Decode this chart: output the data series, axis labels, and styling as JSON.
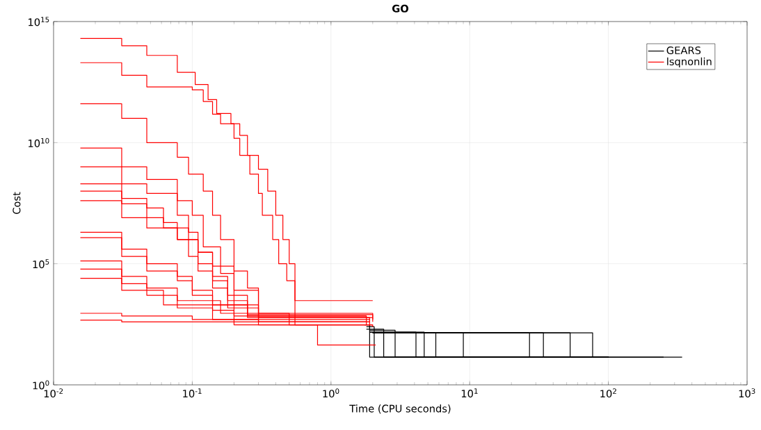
{
  "chart_data": {
    "type": "step",
    "title": "GO",
    "xlabel": "Time (CPU seconds)",
    "ylabel": "Cost",
    "log": "xy",
    "grid": true,
    "legend": "top right",
    "xlim": [
      0.01,
      1000
    ],
    "ylim": [
      1,
      1000000000000000.0
    ],
    "xticks": [
      {
        "value": 0.01,
        "label": "10$^{-2}$"
      },
      {
        "value": 0.1,
        "label": "10$^{-1}$"
      },
      {
        "value": 1,
        "label": "10$^{0}$"
      },
      {
        "value": 10,
        "label": "10$^{1}$"
      },
      {
        "value": 100,
        "label": "10$^{2}$"
      },
      {
        "value": 1000,
        "label": "10$^{3}$"
      }
    ],
    "yticks": [
      {
        "value": 1,
        "label": "10$^{0}$"
      },
      {
        "value": 100000,
        "label": "10$^{5}$"
      },
      {
        "value": 10000000000,
        "label": "10$^{10}$"
      },
      {
        "value": 1000000000000000,
        "label": "10$^{15}$"
      }
    ],
    "series": [
      {
        "name": "GEARS",
        "color": "#000000",
        "x": [
          1.75,
          1.9,
          340
        ],
        "values": [
          300,
          14,
          14
        ]
      },
      {
        "color": "#000000",
        "x": [
          1.8,
          2.05,
          250
        ],
        "values": [
          250,
          14,
          14
        ]
      },
      {
        "color": "#000000",
        "x": [
          1.8,
          2.4,
          100
        ],
        "values": [
          200,
          14,
          14
        ]
      },
      {
        "color": "#000000",
        "x": [
          1.9,
          2.9,
          100
        ],
        "values": [
          180,
          14,
          14
        ]
      },
      {
        "color": "#000000",
        "x": [
          1.9,
          4.1,
          100
        ],
        "values": [
          150,
          14,
          14
        ]
      },
      {
        "color": "#000000",
        "x": [
          1.9,
          4.7,
          100
        ],
        "values": [
          150,
          14,
          14
        ]
      },
      {
        "color": "#000000",
        "x": [
          2.0,
          5.7,
          100
        ],
        "values": [
          140,
          14,
          14
        ]
      },
      {
        "color": "#000000",
        "x": [
          2.0,
          9.0,
          100
        ],
        "values": [
          140,
          14,
          14
        ]
      },
      {
        "color": "#000000",
        "x": [
          2.0,
          27,
          100
        ],
        "values": [
          140,
          14,
          14
        ]
      },
      {
        "color": "#000000",
        "x": [
          2.0,
          34,
          100
        ],
        "values": [
          140,
          14,
          14
        ]
      },
      {
        "color": "#000000",
        "x": [
          2.0,
          53,
          100
        ],
        "values": [
          140,
          14,
          14
        ]
      },
      {
        "color": "#000000",
        "x": [
          2.0,
          77,
          100
        ],
        "values": [
          140,
          14,
          14
        ]
      },
      {
        "name": "lsqnonlin",
        "color": "#ff0000",
        "x": [
          0.0156,
          0.031,
          0.047,
          0.078,
          0.105,
          0.13,
          0.15,
          0.19,
          0.22,
          0.25,
          0.3,
          0.35,
          0.4,
          0.45,
          0.5,
          0.55,
          2.0
        ],
        "values": [
          200000000000000.0,
          100000000000000.0,
          40000000000000.0,
          8000000000000.0,
          2500000000000.0,
          600000000000.0,
          160000000000.0,
          60000000000.0,
          20000000000.0,
          3000000000.0,
          800000000.0,
          100000000.0,
          10000000.0,
          1000000.0,
          100000.0,
          3000,
          3000
        ]
      },
      {
        "color": "#ff0000",
        "x": [
          0.0156,
          0.031,
          0.047,
          0.1,
          0.12,
          0.14,
          0.16,
          0.2,
          0.22,
          0.26,
          0.3,
          0.32,
          0.38,
          0.42,
          0.48,
          0.55,
          2.0
        ],
        "values": [
          20000000000000.0,
          6000000000000.0,
          2000000000000.0,
          1500000000000.0,
          500000000000.0,
          150000000000.0,
          60000000000.0,
          15000000000.0,
          3000000000.0,
          500000000.0,
          80000000.0,
          10000000.0,
          1000000.0,
          100000.0,
          20000.0,
          300,
          300
        ]
      },
      {
        "color": "#ff0000",
        "x": [
          0.0156,
          0.031,
          0.047,
          0.078,
          0.094,
          0.12,
          0.14,
          0.16,
          0.2,
          0.25,
          0.3,
          1.9
        ],
        "values": [
          400000000000.0,
          100000000000.0,
          10000000000.0,
          2500000000.0,
          500000000.0,
          100000000.0,
          10000000.0,
          1000000.0,
          50000.0,
          10000.0,
          400,
          400
        ]
      },
      {
        "color": "#ff0000",
        "x": [
          0.0156,
          0.031,
          0.047,
          0.078,
          0.1,
          0.12,
          0.16,
          0.2,
          0.3,
          2.0
        ],
        "values": [
          6000000000.0,
          1000000000.0,
          300000000.0,
          40000000.0,
          10000000.0,
          500000.0,
          40000.0,
          2000,
          600,
          600
        ]
      },
      {
        "color": "#ff0000",
        "x": [
          0.0156,
          0.031,
          0.047,
          0.078,
          0.094,
          0.11,
          0.14,
          0.18,
          0.25,
          2.0
        ],
        "values": [
          1000000000.0,
          200000000.0,
          80000000.0,
          10000000.0,
          2000000.0,
          300000.0,
          30000.0,
          5000,
          800,
          500
        ]
      },
      {
        "color": "#ff0000",
        "x": [
          0.0156,
          0.031,
          0.047,
          0.062,
          0.078,
          0.094,
          0.11,
          0.14,
          0.18,
          0.3,
          1.9
        ],
        "values": [
          200000000.0,
          50000000.0,
          20000000.0,
          5000000.0,
          1000000.0,
          200000.0,
          50000.0,
          10000.0,
          1500,
          400,
          400
        ]
      },
      {
        "color": "#ff0000",
        "x": [
          0.0156,
          0.031,
          0.047,
          0.062,
          0.094,
          0.11,
          0.14,
          0.18,
          0.25,
          1.8
        ],
        "values": [
          100000000.0,
          30000000.0,
          8000000.0,
          3000000.0,
          1000000.0,
          100000.0,
          20000.0,
          3000,
          700,
          700
        ]
      },
      {
        "color": "#ff0000",
        "x": [
          0.0156,
          0.031,
          0.047,
          0.078,
          0.11,
          0.14,
          0.2,
          0.3,
          0.5,
          2.0
        ],
        "values": [
          40000000.0,
          8000000.0,
          3000000.0,
          1000000.0,
          300000.0,
          80000.0,
          8000,
          900,
          300,
          300
        ]
      },
      {
        "color": "#ff0000",
        "x": [
          0.0156,
          0.031,
          0.047,
          0.078,
          0.1,
          0.14,
          0.25,
          1.9
        ],
        "values": [
          2000000.0,
          400000.0,
          100000.0,
          30000.0,
          8000,
          2000,
          600,
          300
        ]
      },
      {
        "color": "#ff0000",
        "x": [
          0.0156,
          0.031,
          0.047,
          0.078,
          0.1,
          0.14,
          0.2,
          1.8
        ],
        "values": [
          1200000.0,
          200000.0,
          50000.0,
          20000.0,
          5000,
          1200,
          400,
          400
        ]
      },
      {
        "color": "#ff0000",
        "x": [
          0.0156,
          0.031,
          0.047,
          0.078,
          0.16,
          2.0
        ],
        "values": [
          130000.0,
          30000.0,
          10000.0,
          3000,
          900,
          400
        ]
      },
      {
        "color": "#ff0000",
        "x": [
          0.0156,
          0.031,
          0.047,
          0.078,
          0.14,
          1.9
        ],
        "values": [
          60000.0,
          15000.0,
          5000,
          1500,
          500,
          500
        ]
      },
      {
        "color": "#ff0000",
        "x": [
          0.0156,
          0.031,
          0.062,
          0.2,
          1.8
        ],
        "values": [
          25000.0,
          8000,
          2000,
          700,
          300
        ]
      },
      {
        "color": "#ff0000",
        "x": [
          0.0156,
          0.031,
          0.1,
          0.3,
          0.8,
          2.1
        ],
        "values": [
          900,
          700,
          500,
          300,
          44,
          44
        ]
      },
      {
        "color": "#ff0000",
        "x": [
          0.0156,
          0.031,
          0.2,
          2.0
        ],
        "values": [
          470,
          400,
          300,
          250
        ]
      }
    ]
  }
}
